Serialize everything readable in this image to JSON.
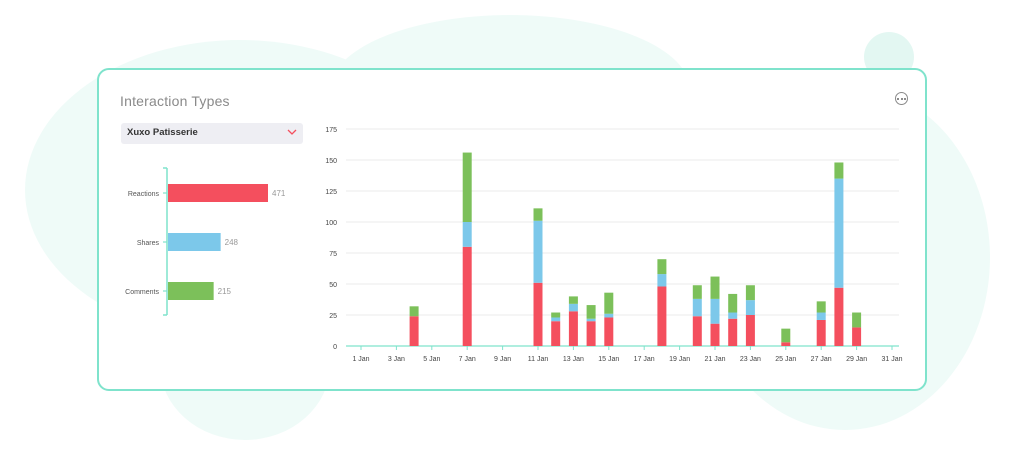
{
  "widget": {
    "title": "Interaction Types",
    "selector": {
      "selected": "Xuxo Patisserie"
    }
  },
  "colors": {
    "reactions": "#f44f5e",
    "shares": "#7cc8ea",
    "comments": "#7cc05a",
    "accent": "#7fe3cc"
  },
  "chart_data": [
    {
      "type": "bar",
      "orientation": "horizontal",
      "categories": [
        "Reactions",
        "Shares",
        "Comments"
      ],
      "values": [
        471,
        248,
        215
      ]
    },
    {
      "type": "bar",
      "stacked": true,
      "categories": [
        "1 Jan",
        "2 Jan",
        "3 Jan",
        "4 Jan",
        "5 Jan",
        "6 Jan",
        "7 Jan",
        "8 Jan",
        "9 Jan",
        "10 Jan",
        "11 Jan",
        "12 Jan",
        "13 Jan",
        "14 Jan",
        "15 Jan",
        "16 Jan",
        "17 Jan",
        "18 Jan",
        "19 Jan",
        "20 Jan",
        "21 Jan",
        "22 Jan",
        "23 Jan",
        "24 Jan",
        "25 Jan",
        "26 Jan",
        "27 Jan",
        "28 Jan",
        "29 Jan",
        "30 Jan",
        "31 Jan"
      ],
      "tick_labels": [
        "1 Jan",
        "3 Jan",
        "5 Jan",
        "7 Jan",
        "9 Jan",
        "11 Jan",
        "13 Jan",
        "15 Jan",
        "17 Jan",
        "19 Jan",
        "21 Jan",
        "23 Jan",
        "25 Jan",
        "27 Jan",
        "29 Jan",
        "31 Jan"
      ],
      "series": [
        {
          "values": [
            0,
            0,
            0,
            24,
            0,
            0,
            80,
            0,
            0,
            0,
            51,
            20,
            28,
            20,
            23,
            0,
            0,
            48,
            0,
            24,
            18,
            22,
            25,
            0,
            3,
            0,
            21,
            47,
            15,
            0,
            0
          ]
        },
        {
          "values": [
            0,
            0,
            0,
            0,
            0,
            0,
            20,
            0,
            0,
            0,
            50,
            3,
            6,
            2,
            3,
            0,
            0,
            10,
            0,
            14,
            20,
            5,
            12,
            0,
            0,
            0,
            6,
            88,
            0,
            0,
            0
          ]
        },
        {
          "values": [
            0,
            0,
            0,
            8,
            0,
            0,
            56,
            0,
            0,
            0,
            10,
            4,
            6,
            11,
            17,
            0,
            0,
            12,
            0,
            11,
            18,
            15,
            12,
            0,
            11,
            0,
            9,
            13,
            12,
            0,
            0
          ]
        }
      ],
      "ylim": [
        0,
        175
      ],
      "yticks": [
        0,
        25,
        50,
        75,
        100,
        125,
        150,
        175
      ],
      "grid": true
    }
  ]
}
